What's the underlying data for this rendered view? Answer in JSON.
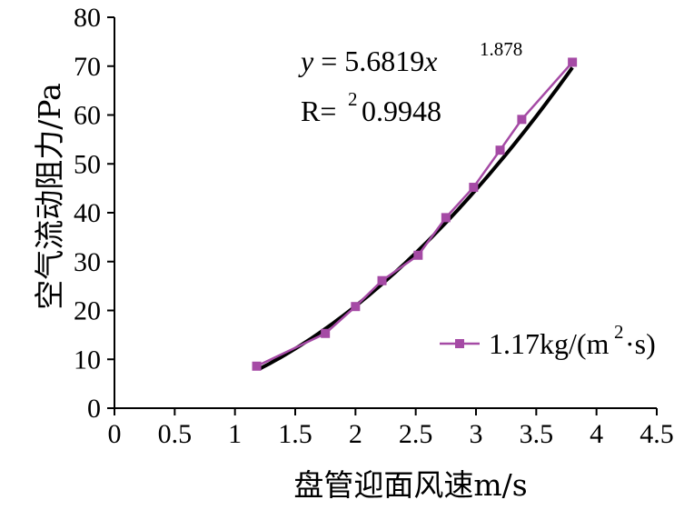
{
  "colors": {
    "series": "#a54aa5",
    "fit": "#000000",
    "axis": "#000000"
  },
  "equation": {
    "y": "y",
    "mid": " = 5.6819",
    "x": "x",
    "exp": "1.878"
  },
  "r2": {
    "prefix": "R=",
    "sup": "2",
    "value": "0.9948"
  },
  "legend": {
    "label_main": "1.17kg/(m",
    "label_sup": "2",
    "label_tail": "·s)"
  },
  "chart_data": {
    "type": "scatter",
    "xlabel": "盘管迎面风速m/s",
    "ylabel": "空气流动阻力/Pa",
    "xlim": [
      0,
      4.5
    ],
    "ylim": [
      0,
      80
    ],
    "x_ticks": [
      "0",
      "0.5",
      "1",
      "1.5",
      "2",
      "2.5",
      "3",
      "3.5",
      "4",
      "4.5"
    ],
    "y_ticks": [
      "0",
      "10",
      "20",
      "30",
      "40",
      "50",
      "60",
      "70",
      "80"
    ],
    "series": [
      {
        "name": "1.17kg/(m²·s)",
        "x": [
          1.18,
          1.75,
          2.0,
          2.22,
          2.52,
          2.75,
          2.98,
          3.2,
          3.38,
          3.8
        ],
        "y": [
          8.6,
          15.3,
          20.8,
          26.1,
          31.3,
          39.0,
          45.2,
          52.8,
          59.1,
          70.8
        ]
      }
    ],
    "trendline": {
      "type": "power",
      "a": 5.6819,
      "b": 1.878,
      "x_range": [
        1.2,
        3.8
      ],
      "r_squared": 0.9948
    },
    "legend_position": "right",
    "grid": false
  }
}
